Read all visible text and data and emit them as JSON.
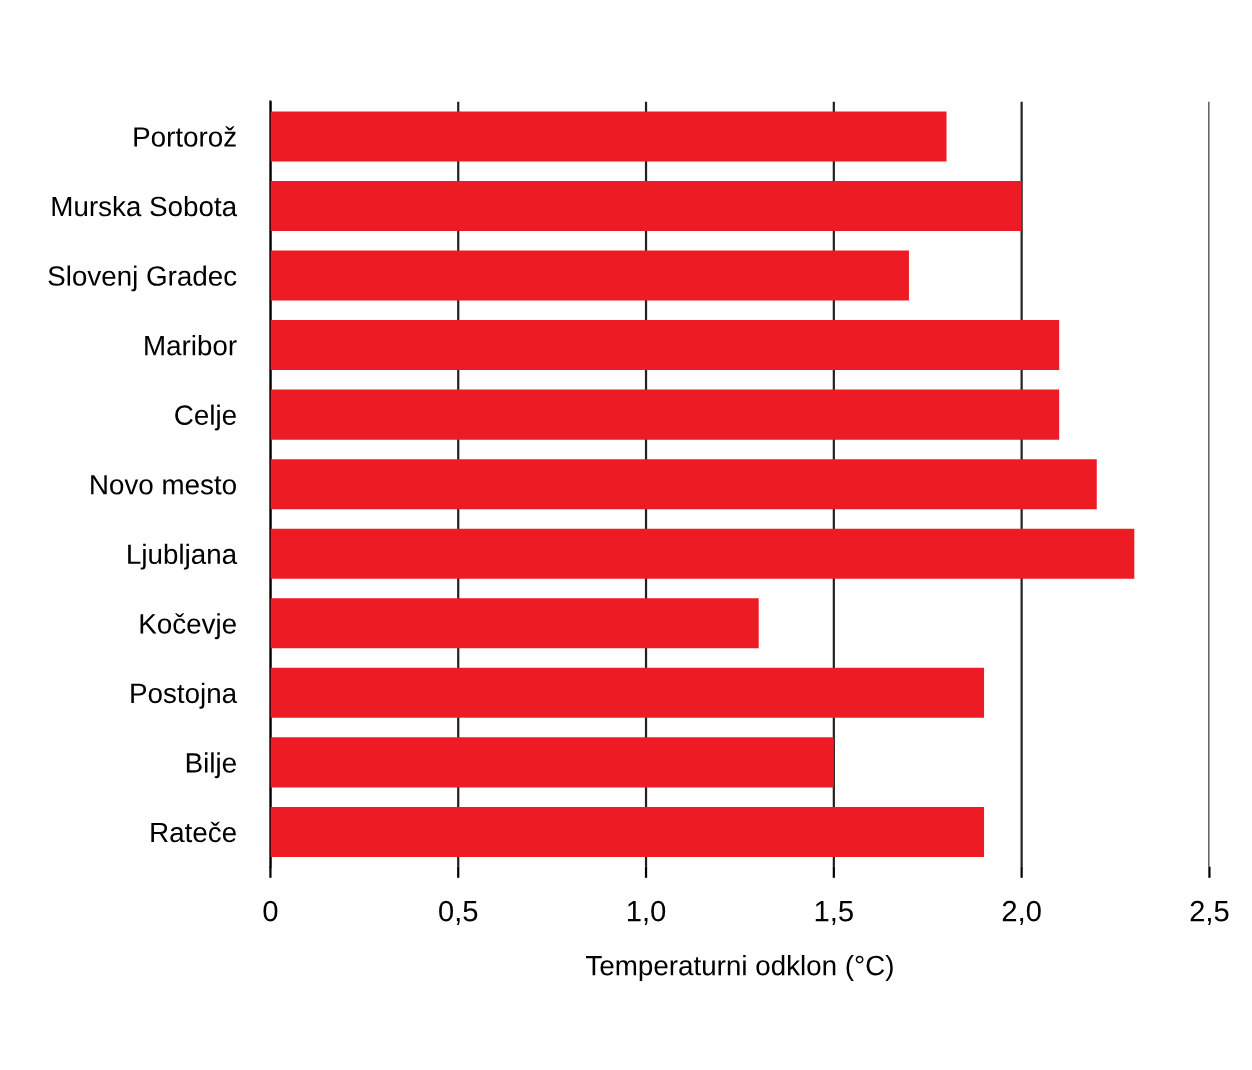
{
  "chart_data": {
    "type": "bar",
    "orientation": "horizontal",
    "xlabel": "Temperaturni odklon (°C)",
    "categories": [
      "Portorož",
      "Murska Sobota",
      "Slovenj Gradec",
      "Maribor",
      "Celje",
      "Novo mesto",
      "Ljubljana",
      "Kočevje",
      "Postojna",
      "Bilje",
      "Rateče"
    ],
    "values": [
      1.8,
      2.0,
      1.7,
      2.1,
      2.1,
      2.2,
      2.3,
      1.3,
      1.9,
      1.5,
      1.9
    ],
    "color": "#ed1c24",
    "xlim": [
      0,
      2.5
    ],
    "xticks": [
      0,
      {
        "value": 0.5,
        "label": "0,5"
      },
      {
        "value": 1.0,
        "label": "1,0"
      },
      {
        "value": 1.5,
        "label": "1,5"
      },
      {
        "value": 2.0,
        "label": "2,0"
      },
      {
        "value": 2.5,
        "label": "2,5"
      }
    ],
    "grid": "x",
    "legend": false
  }
}
